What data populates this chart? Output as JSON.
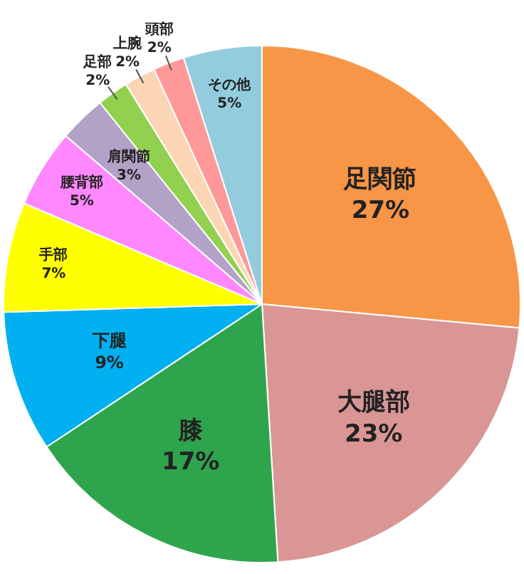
{
  "chart_data": {
    "type": "pie",
    "categories": [
      "足関節",
      "大腿部",
      "膝",
      "下腿",
      "手部",
      "腰背部",
      "肩関節",
      "足部",
      "上腕",
      "頭部",
      "その他"
    ],
    "values": [
      27,
      23,
      17,
      9,
      7,
      5,
      3,
      2,
      2,
      2,
      5
    ],
    "colors": [
      "#f79646",
      "#d99694",
      "#2ea54d",
      "#00b0f0",
      "#ffff00",
      "#ff88ff",
      "#b3a2c7",
      "#92d050",
      "#fcd5b5",
      "#ff9999",
      "#93cddd"
    ],
    "value_labels": [
      "27%",
      "23%",
      "17%",
      "9%",
      "7%",
      "5%",
      "3%",
      "2%",
      "2%",
      "2%",
      "5%"
    ],
    "legend": false
  }
}
